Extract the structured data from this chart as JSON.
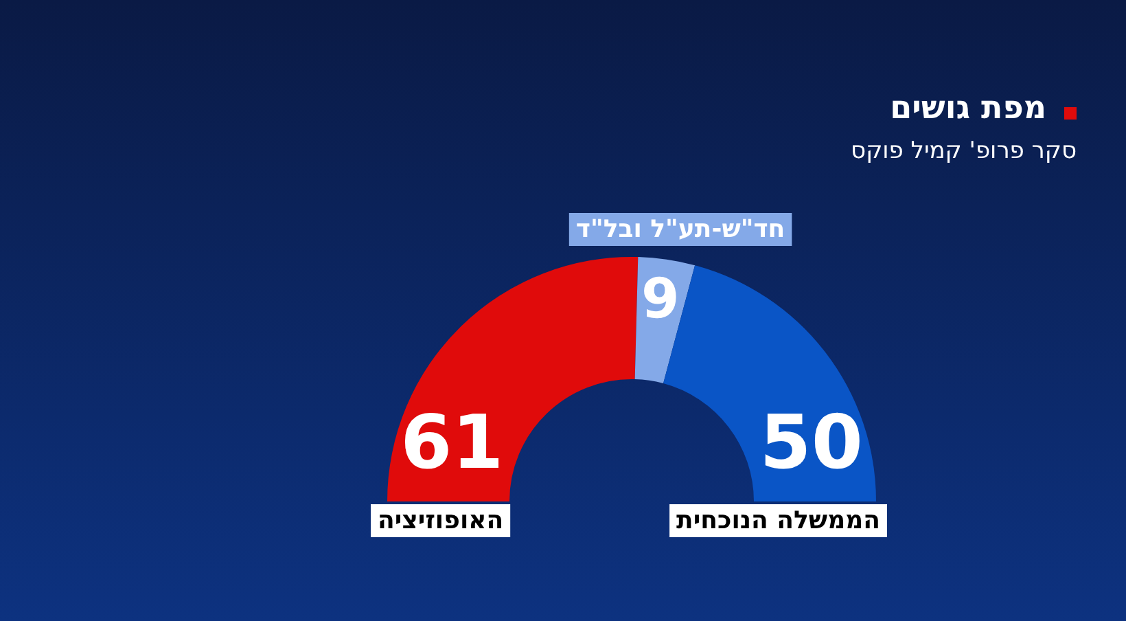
{
  "chart_data": {
    "type": "donut",
    "title": "מפת גושים",
    "subtitle": "סקר פרופ' קמיל פוקס",
    "categories": [
      "האופוזיציה",
      "חד\"ש-תע\"ל ובל\"ד",
      "הממשלה הנוכחית"
    ],
    "values": [
      61,
      9,
      50
    ],
    "colors": [
      "#e00b0b",
      "#84a9e8",
      "#0a55c6"
    ],
    "data_labels": true,
    "legend": false
  }
}
